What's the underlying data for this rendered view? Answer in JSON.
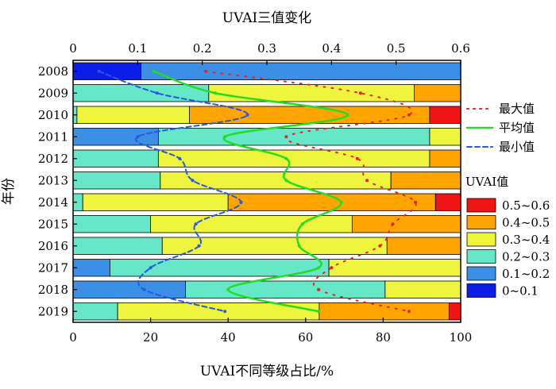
{
  "chart_data": {
    "type": "bar",
    "stacked": true,
    "orientation": "horizontal",
    "xlabel_bottom": "UVAI不同等级占比/%",
    "xlabel_top": "UVAI三值变化",
    "ylabel": "年份",
    "xlim_bottom": [
      0,
      100
    ],
    "xlim_top": [
      0,
      0.6
    ],
    "xticks_bottom": [
      "0",
      "20",
      "40",
      "60",
      "80",
      "100"
    ],
    "xticks_top": [
      "0",
      "0.1",
      "0.2",
      "0.3",
      "0.4",
      "0.5",
      "0.6"
    ],
    "categories": [
      "2008",
      "2009",
      "2010",
      "2011",
      "2012",
      "2013",
      "2014",
      "2015",
      "2016",
      "2017",
      "2018",
      "2019"
    ],
    "bar_legend_title": "UVAI值",
    "bar_series": [
      {
        "name": "0~0.1",
        "color": "#0a1ee8",
        "values": [
          17.5,
          0,
          0,
          0,
          0,
          0,
          0,
          0,
          0,
          0,
          0,
          0
        ]
      },
      {
        "name": "0.1~0.2",
        "color": "#3c8fe6",
        "values": [
          82.5,
          0,
          0,
          22,
          0,
          0,
          0,
          0,
          0,
          9.5,
          29,
          0
        ]
      },
      {
        "name": "0.2~0.3",
        "color": "#66e8c8",
        "values": [
          0,
          35,
          1,
          70,
          22,
          22.5,
          2.5,
          20,
          23,
          56.5,
          51.5,
          11.5
        ]
      },
      {
        "name": "0.3~0.4",
        "color": "#eef53c",
        "values": [
          0,
          53,
          29,
          8,
          70,
          59.5,
          37.5,
          52,
          58,
          34,
          19.5,
          52
        ]
      },
      {
        "name": "0.4~0.5",
        "color": "#ffa500",
        "values": [
          0,
          12,
          62,
          0,
          8,
          18,
          53.5,
          28,
          19,
          0,
          0,
          33.5
        ]
      },
      {
        "name": "0.5~0.6",
        "color": "#f01414",
        "values": [
          0,
          0,
          8,
          0,
          0,
          0,
          6.5,
          0,
          0,
          0,
          0,
          3
        ]
      }
    ],
    "line_series": [
      {
        "name": "最大值",
        "color": "#e82020",
        "style": "dotted",
        "values": [
          0.205,
          0.445,
          0.52,
          0.33,
          0.44,
          0.455,
          0.53,
          0.495,
          0.475,
          0.4,
          0.38,
          0.52
        ]
      },
      {
        "name": "平均值",
        "color": "#22dd22",
        "style": "solid",
        "values": [
          0.125,
          0.22,
          0.425,
          0.235,
          0.33,
          0.33,
          0.415,
          0.355,
          0.35,
          0.38,
          0.24,
          0.38
        ]
      },
      {
        "name": "最小值",
        "color": "#2858e0",
        "style": "dashed",
        "values": [
          0.04,
          0.13,
          0.27,
          0.1,
          0.165,
          0.185,
          0.26,
          0.19,
          0.195,
          0.12,
          0.11,
          0.235
        ]
      }
    ]
  }
}
